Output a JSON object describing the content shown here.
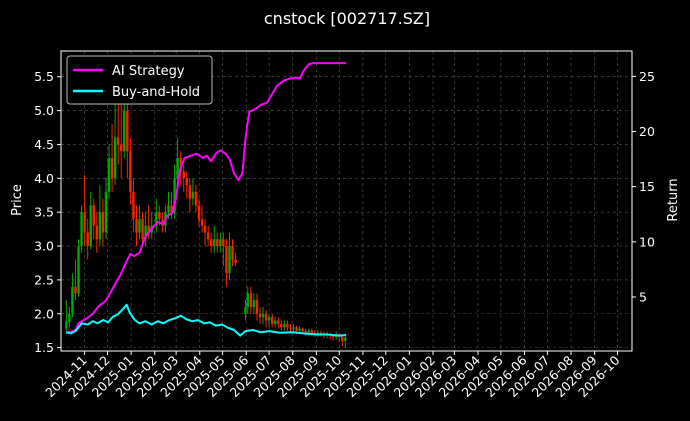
{
  "chart_data": {
    "type": "line",
    "title": "cnstock [002717.SZ]",
    "xlabel": "",
    "ylabel": "Price",
    "y2label": "Return",
    "ylim": [
      1.45,
      5.88
    ],
    "y2lim": [
      0.1,
      27.3
    ],
    "yticks": [
      "1.5",
      "2.0",
      "2.5",
      "3.0",
      "3.5",
      "4.0",
      "4.5",
      "5.0",
      "5.5"
    ],
    "y2ticks": [
      "5",
      "10",
      "15",
      "20",
      "25"
    ],
    "xticks": [
      "2024-11",
      "2024-12",
      "2025-01",
      "2025-02",
      "2025-03",
      "2025-04",
      "2025-05",
      "2025-06",
      "2025-07",
      "2025-08",
      "2025-09",
      "2025-10",
      "2025-11",
      "2025-12",
      "2026-01",
      "2026-02",
      "2026-03",
      "2026-04",
      "2026-05",
      "2026-06",
      "2026-07",
      "2026-08",
      "2026-09",
      "2026-10"
    ],
    "xlim": [
      "2024-10-01",
      "2026-10-20"
    ],
    "grid": true,
    "legend": "top-left",
    "colors": {
      "up": "#00aa00",
      "down": "#ff2200",
      "ai": "#ff00ff",
      "bh": "#00ffff"
    },
    "series": [
      {
        "name": "AI Strategy",
        "axis": "right",
        "points": [
          [
            "2024-10-08",
            1.8
          ],
          [
            "2024-10-14",
            1.85
          ],
          [
            "2024-10-20",
            2.0
          ],
          [
            "2024-10-24",
            2.6
          ],
          [
            "2024-10-28",
            2.8
          ],
          [
            "2024-11-05",
            3.1
          ],
          [
            "2024-11-12",
            3.5
          ],
          [
            "2024-11-20",
            4.2
          ],
          [
            "2024-11-28",
            4.6
          ],
          [
            "2024-12-05",
            5.4
          ],
          [
            "2024-12-12",
            6.3
          ],
          [
            "2024-12-18",
            7.0
          ],
          [
            "2024-12-25",
            8.1
          ],
          [
            "2024-12-31",
            8.9
          ],
          [
            "2025-01-05",
            8.7
          ],
          [
            "2025-01-12",
            9.0
          ],
          [
            "2025-01-20",
            10.5
          ],
          [
            "2025-01-28",
            11.2
          ],
          [
            "2025-02-05",
            11.8
          ],
          [
            "2025-02-12",
            11.6
          ],
          [
            "2025-02-18",
            12.4
          ],
          [
            "2025-02-24",
            12.6
          ],
          [
            "2025-03-01",
            14.0
          ],
          [
            "2025-03-06",
            16.5
          ],
          [
            "2025-03-12",
            17.6
          ],
          [
            "2025-03-20",
            17.8
          ],
          [
            "2025-03-28",
            18.0
          ],
          [
            "2025-04-05",
            17.6
          ],
          [
            "2025-04-10",
            17.8
          ],
          [
            "2025-04-16",
            17.3
          ],
          [
            "2025-04-22",
            18.0
          ],
          [
            "2025-04-28",
            18.3
          ],
          [
            "2025-05-05",
            18.0
          ],
          [
            "2025-05-10",
            17.5
          ],
          [
            "2025-05-16",
            16.2
          ],
          [
            "2025-05-22",
            15.6
          ],
          [
            "2025-05-27",
            16.2
          ],
          [
            "2025-05-31",
            19.4
          ],
          [
            "2025-06-05",
            21.8
          ],
          [
            "2025-06-12",
            22.0
          ],
          [
            "2025-06-20",
            22.4
          ],
          [
            "2025-06-28",
            22.6
          ],
          [
            "2025-07-05",
            23.4
          ],
          [
            "2025-07-12",
            24.2
          ],
          [
            "2025-07-20",
            24.6
          ],
          [
            "2025-07-28",
            24.8
          ],
          [
            "2025-08-05",
            24.9
          ],
          [
            "2025-08-10",
            24.8
          ],
          [
            "2025-08-16",
            25.6
          ],
          [
            "2025-08-22",
            26.1
          ],
          [
            "2025-08-28",
            26.2
          ],
          [
            "2025-09-01",
            26.2
          ],
          [
            "2025-09-10",
            26.2
          ],
          [
            "2025-09-25",
            26.2
          ],
          [
            "2025-10-10",
            26.2
          ]
        ]
      },
      {
        "name": "Buy-and-Hold",
        "axis": "right",
        "points": [
          [
            "2024-10-08",
            1.8
          ],
          [
            "2024-10-14",
            1.7
          ],
          [
            "2024-10-20",
            1.9
          ],
          [
            "2024-10-28",
            2.6
          ],
          [
            "2024-11-05",
            2.5
          ],
          [
            "2024-11-12",
            2.8
          ],
          [
            "2024-11-18",
            2.6
          ],
          [
            "2024-11-25",
            2.9
          ],
          [
            "2024-12-02",
            2.7
          ],
          [
            "2024-12-08",
            3.2
          ],
          [
            "2024-12-14",
            3.4
          ],
          [
            "2024-12-20",
            3.8
          ],
          [
            "2024-12-26",
            4.3
          ],
          [
            "2024-12-30",
            3.6
          ],
          [
            "2025-01-06",
            2.9
          ],
          [
            "2025-01-12",
            2.6
          ],
          [
            "2025-01-20",
            2.8
          ],
          [
            "2025-01-28",
            2.5
          ],
          [
            "2025-02-05",
            2.8
          ],
          [
            "2025-02-12",
            2.6
          ],
          [
            "2025-02-20",
            2.9
          ],
          [
            "2025-03-01",
            3.1
          ],
          [
            "2025-03-07",
            3.3
          ],
          [
            "2025-03-14",
            3.0
          ],
          [
            "2025-03-22",
            2.8
          ],
          [
            "2025-03-30",
            2.9
          ],
          [
            "2025-04-07",
            2.6
          ],
          [
            "2025-04-14",
            2.7
          ],
          [
            "2025-04-22",
            2.4
          ],
          [
            "2025-04-30",
            2.5
          ],
          [
            "2025-05-08",
            2.2
          ],
          [
            "2025-05-16",
            2.0
          ],
          [
            "2025-05-24",
            1.5
          ],
          [
            "2025-05-31",
            1.9
          ],
          [
            "2025-06-10",
            2.0
          ],
          [
            "2025-06-20",
            1.8
          ],
          [
            "2025-07-01",
            1.9
          ],
          [
            "2025-07-15",
            1.75
          ],
          [
            "2025-08-01",
            1.8
          ],
          [
            "2025-08-15",
            1.7
          ],
          [
            "2025-09-01",
            1.6
          ],
          [
            "2025-09-15",
            1.6
          ],
          [
            "2025-10-01",
            1.5
          ],
          [
            "2025-10-10",
            1.55
          ]
        ]
      }
    ]
  },
  "candles": [
    [
      "2024-10-08",
      1.78,
      1.88,
      2.2,
      1.7
    ],
    [
      "2024-10-12",
      1.88,
      2.0,
      2.1,
      1.8
    ],
    [
      "2024-10-16",
      2.0,
      2.4,
      2.6,
      1.95
    ],
    [
      "2024-10-20",
      2.4,
      2.3,
      2.8,
      2.2
    ],
    [
      "2024-10-24",
      2.3,
      3.0,
      3.1,
      2.25
    ],
    [
      "2024-10-28",
      3.0,
      3.5,
      3.6,
      2.9
    ],
    [
      "2024-11-01",
      3.5,
      3.2,
      4.05,
      3.0
    ],
    [
      "2024-11-05",
      3.2,
      3.0,
      3.4,
      2.8
    ],
    [
      "2024-11-09",
      3.0,
      3.6,
      3.8,
      2.95
    ],
    [
      "2024-11-13",
      3.6,
      3.3,
      3.7,
      3.1
    ],
    [
      "2024-11-17",
      3.3,
      3.1,
      3.5,
      2.9
    ],
    [
      "2024-11-21",
      3.1,
      3.5,
      3.9,
      3.0
    ],
    [
      "2024-11-25",
      3.5,
      3.2,
      3.7,
      3.0
    ],
    [
      "2024-11-29",
      3.2,
      3.8,
      4.0,
      3.1
    ],
    [
      "2024-12-03",
      3.8,
      4.3,
      4.5,
      3.7
    ],
    [
      "2024-12-07",
      4.3,
      4.0,
      4.8,
      3.8
    ],
    [
      "2024-12-11",
      4.0,
      4.6,
      5.2,
      3.9
    ],
    [
      "2024-12-15",
      4.6,
      4.5,
      5.4,
      4.2
    ],
    [
      "2024-12-19",
      4.5,
      4.4,
      5.7,
      4.0
    ],
    [
      "2024-12-23",
      4.4,
      5.0,
      5.4,
      4.3
    ],
    [
      "2024-12-27",
      5.0,
      4.4,
      5.2,
      4.0
    ],
    [
      "2024-12-31",
      4.4,
      3.8,
      4.6,
      3.6
    ],
    [
      "2025-01-04",
      3.8,
      3.4,
      4.0,
      3.2
    ],
    [
      "2025-01-08",
      3.4,
      3.2,
      3.6,
      3.0
    ],
    [
      "2025-01-12",
      3.2,
      3.4,
      3.6,
      3.1
    ],
    [
      "2025-01-16",
      3.4,
      3.1,
      3.5,
      3.0
    ],
    [
      "2025-01-20",
      3.1,
      3.3,
      3.5,
      3.0
    ],
    [
      "2025-01-24",
      3.3,
      3.2,
      3.6,
      3.1
    ],
    [
      "2025-01-28",
      3.2,
      3.3,
      3.5,
      3.1
    ],
    [
      "2025-02-03",
      3.3,
      3.5,
      3.7,
      3.2
    ],
    [
      "2025-02-07",
      3.5,
      3.4,
      3.6,
      3.3
    ],
    [
      "2025-02-11",
      3.4,
      3.3,
      3.5,
      3.2
    ],
    [
      "2025-02-15",
      3.3,
      3.5,
      3.6,
      3.2
    ],
    [
      "2025-02-19",
      3.5,
      3.6,
      3.8,
      3.4
    ],
    [
      "2025-02-23",
      3.6,
      3.5,
      3.8,
      3.4
    ],
    [
      "2025-02-27",
      3.5,
      4.0,
      4.2,
      3.4
    ],
    [
      "2025-03-03",
      4.0,
      4.3,
      4.6,
      3.9
    ],
    [
      "2025-03-07",
      4.3,
      4.1,
      4.4,
      3.9
    ],
    [
      "2025-03-11",
      4.1,
      4.0,
      4.2,
      3.8
    ],
    [
      "2025-03-15",
      4.0,
      3.9,
      4.1,
      3.7
    ],
    [
      "2025-03-19",
      3.9,
      3.7,
      4.0,
      3.5
    ],
    [
      "2025-03-23",
      3.7,
      3.8,
      4.0,
      3.6
    ],
    [
      "2025-03-27",
      3.8,
      3.6,
      3.9,
      3.5
    ],
    [
      "2025-03-31",
      3.6,
      3.4,
      3.7,
      3.3
    ],
    [
      "2025-04-04",
      3.4,
      3.3,
      3.6,
      3.2
    ],
    [
      "2025-04-08",
      3.3,
      3.2,
      3.4,
      3.0
    ],
    [
      "2025-04-12",
      3.2,
      3.1,
      3.3,
      3.0
    ],
    [
      "2025-04-16",
      3.1,
      3.0,
      3.2,
      2.9
    ],
    [
      "2025-04-20",
      3.0,
      3.1,
      3.3,
      2.9
    ],
    [
      "2025-04-24",
      3.1,
      3.0,
      3.2,
      2.9
    ],
    [
      "2025-04-28",
      3.0,
      3.1,
      3.2,
      2.9
    ],
    [
      "2025-05-02",
      3.1,
      3.0,
      3.2,
      2.7
    ],
    [
      "2025-05-06",
      3.0,
      2.6,
      3.1,
      2.4
    ],
    [
      "2025-05-10",
      2.6,
      3.0,
      3.2,
      2.5
    ],
    [
      "2025-05-14",
      3.0,
      2.8,
      3.1,
      2.7
    ],
    [
      "2025-05-18",
      2.8,
      2.75,
      2.9,
      2.7
    ],
    [
      "2025-05-31",
      2.0,
      2.1,
      2.2,
      1.9
    ],
    [
      "2025-06-03",
      2.1,
      2.3,
      2.4,
      2.0
    ],
    [
      "2025-06-07",
      2.3,
      2.1,
      2.4,
      2.0
    ],
    [
      "2025-06-11",
      2.1,
      2.2,
      2.3,
      2.0
    ],
    [
      "2025-06-15",
      2.2,
      2.0,
      2.3,
      1.9
    ],
    [
      "2025-06-19",
      2.0,
      1.95,
      2.1,
      1.85
    ],
    [
      "2025-06-23",
      1.95,
      2.0,
      2.1,
      1.85
    ],
    [
      "2025-06-27",
      2.0,
      1.9,
      2.05,
      1.8
    ],
    [
      "2025-07-01",
      1.9,
      1.95,
      2.0,
      1.8
    ],
    [
      "2025-07-05",
      1.95,
      1.85,
      2.0,
      1.8
    ],
    [
      "2025-07-09",
      1.85,
      1.9,
      1.95,
      1.8
    ],
    [
      "2025-07-13",
      1.9,
      1.85,
      1.95,
      1.78
    ],
    [
      "2025-07-17",
      1.85,
      1.8,
      1.9,
      1.75
    ],
    [
      "2025-07-21",
      1.8,
      1.85,
      1.9,
      1.75
    ],
    [
      "2025-07-25",
      1.85,
      1.8,
      1.9,
      1.75
    ],
    [
      "2025-07-29",
      1.8,
      1.78,
      1.85,
      1.72
    ],
    [
      "2025-08-02",
      1.78,
      1.8,
      1.85,
      1.72
    ],
    [
      "2025-08-06",
      1.8,
      1.75,
      1.82,
      1.7
    ],
    [
      "2025-08-10",
      1.75,
      1.78,
      1.82,
      1.7
    ],
    [
      "2025-08-14",
      1.78,
      1.74,
      1.8,
      1.7
    ],
    [
      "2025-08-18",
      1.74,
      1.72,
      1.78,
      1.68
    ],
    [
      "2025-08-22",
      1.72,
      1.75,
      1.78,
      1.68
    ],
    [
      "2025-08-26",
      1.75,
      1.72,
      1.78,
      1.68
    ],
    [
      "2025-08-30",
      1.72,
      1.7,
      1.76,
      1.66
    ],
    [
      "2025-09-03",
      1.7,
      1.72,
      1.76,
      1.66
    ],
    [
      "2025-09-07",
      1.72,
      1.7,
      1.75,
      1.66
    ],
    [
      "2025-09-11",
      1.7,
      1.68,
      1.74,
      1.64
    ],
    [
      "2025-09-15",
      1.68,
      1.7,
      1.74,
      1.64
    ],
    [
      "2025-09-19",
      1.7,
      1.68,
      1.72,
      1.62
    ],
    [
      "2025-09-23",
      1.68,
      1.66,
      1.7,
      1.6
    ],
    [
      "2025-09-27",
      1.66,
      1.7,
      1.74,
      1.62
    ],
    [
      "2025-10-01",
      1.7,
      1.66,
      1.72,
      1.58
    ],
    [
      "2025-10-05",
      1.66,
      1.6,
      1.7,
      1.52
    ],
    [
      "2025-10-09",
      1.6,
      1.65,
      1.7,
      1.5
    ]
  ]
}
